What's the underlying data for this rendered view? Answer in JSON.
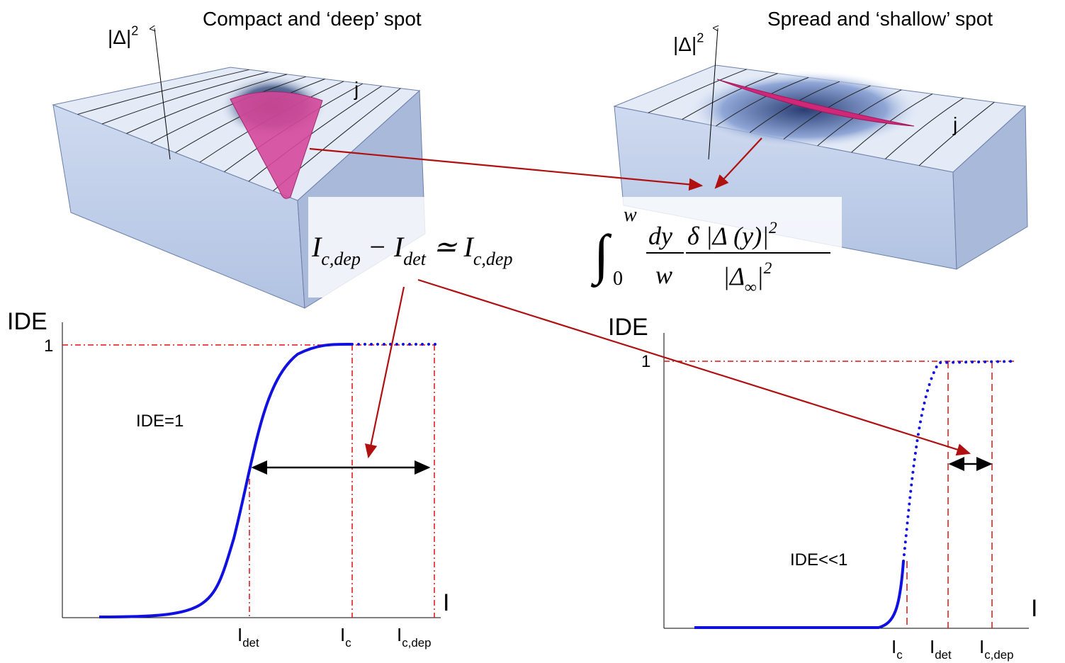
{
  "panels": [
    {
      "title": "Compact and ‘deep’ spot",
      "axis_label": "|Δ|",
      "axis_label_sup": "2",
      "current_label": "j"
    },
    {
      "title": "Spread and ‘shallow’ spot",
      "axis_label": "|Δ|",
      "axis_label_sup": "2",
      "current_label": "j"
    }
  ],
  "formula": {
    "lhs": [
      {
        "t": "I",
        "sub": "c,dep"
      },
      {
        "t": " − "
      },
      {
        "t": "I",
        "sub": "det"
      },
      {
        "t": " ≃ "
      },
      {
        "t": "I",
        "sub": "c,dep"
      }
    ],
    "integral": "∫",
    "lower": "0",
    "upper": "w",
    "fraction1": {
      "num": "dy",
      "den": "w"
    },
    "fraction2": {
      "num": "δ |Δ (y)|",
      "num_sup": "2",
      "den": "|Δ",
      "den_sub": "∞",
      "den_after": "|",
      "den_sup": "2"
    }
  },
  "plots": [
    {
      "y_label": "IDE",
      "y_tick": "1",
      "annotation": "IDE=1",
      "x_label": "I",
      "markers": [
        {
          "t": "I",
          "sub": "det"
        },
        {
          "t": "I",
          "sub": "c"
        },
        {
          "t": "I",
          "sub": "c,dep"
        }
      ]
    },
    {
      "y_label": "IDE",
      "y_tick": "1",
      "annotation": "IDE<<1",
      "x_label": "I",
      "markers": [
        {
          "t": "I",
          "sub": "c"
        },
        {
          "t": "I",
          "sub": "det"
        },
        {
          "t": "I",
          "sub": "c,dep"
        }
      ]
    }
  ]
}
